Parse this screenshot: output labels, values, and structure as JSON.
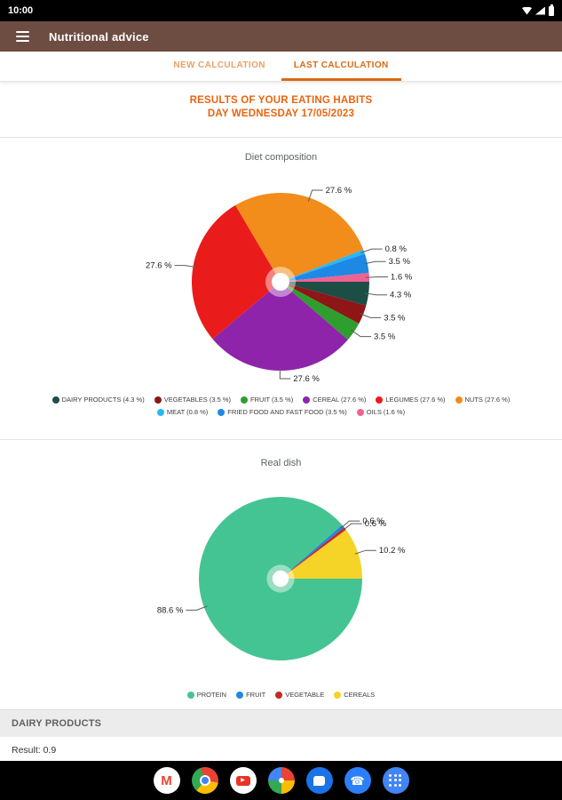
{
  "status_bar": {
    "time": "10:00"
  },
  "app_bar": {
    "title": "Nutritional advice"
  },
  "tabs": [
    {
      "label": "NEW CALCULATION",
      "selected": false
    },
    {
      "label": "LAST CALCULATION",
      "selected": true
    }
  ],
  "results_header": {
    "line1": "RESULTS OF YOUR EATING HABITS",
    "line2": "DAY WEDNESDAY 17/05/2023"
  },
  "chart_data": [
    {
      "type": "pie",
      "title": "Diet composition",
      "unit": "%",
      "start_angle": 0,
      "direction": "clockwise",
      "legend_shows_values": true,
      "slices": [
        {
          "label": "DAIRY PRODUCTS",
          "value": 4.3,
          "color": "#1D4E45"
        },
        {
          "label": "VEGETABLES",
          "value": 3.5,
          "color": "#8E1616"
        },
        {
          "label": "FRUIT",
          "value": 3.5,
          "color": "#2E9E2E"
        },
        {
          "label": "CEREAL",
          "value": 27.6,
          "color": "#8E24AA"
        },
        {
          "label": "LEGUMES",
          "value": 27.6,
          "color": "#EA1B1B"
        },
        {
          "label": "NUTS",
          "value": 27.6,
          "color": "#F28C1B"
        },
        {
          "label": "MEAT",
          "value": 0.8,
          "color": "#29B6F6"
        },
        {
          "label": "FRIED FOOD AND FAST FOOD",
          "value": 3.5,
          "color": "#1E88E5"
        },
        {
          "label": "OILS",
          "value": 1.6,
          "color": "#F06292"
        }
      ]
    },
    {
      "type": "pie",
      "title": "Real dish",
      "unit": "%",
      "start_angle": 0,
      "direction": "clockwise",
      "legend_shows_values": false,
      "slices": [
        {
          "label": "PROTEIN",
          "value": 88.6,
          "color": "#45C493"
        },
        {
          "label": "FRUIT",
          "value": 0.6,
          "color": "#1E88E5"
        },
        {
          "label": "VEGETABLE",
          "value": 0.6,
          "color": "#C62828"
        },
        {
          "label": "CEREALS",
          "value": 10.2,
          "color": "#F5D327"
        }
      ]
    }
  ],
  "dairy_section": {
    "title": "DAIRY PRODUCTS",
    "result": "Result: 0.9"
  },
  "nav_bar": {
    "apps": [
      {
        "name": "gmail",
        "glyph": "M"
      },
      {
        "name": "chrome"
      },
      {
        "name": "youtube",
        "glyph": "▶"
      },
      {
        "name": "photos"
      },
      {
        "name": "messages"
      },
      {
        "name": "phone",
        "glyph": "☎"
      },
      {
        "name": "all-apps"
      }
    ]
  }
}
